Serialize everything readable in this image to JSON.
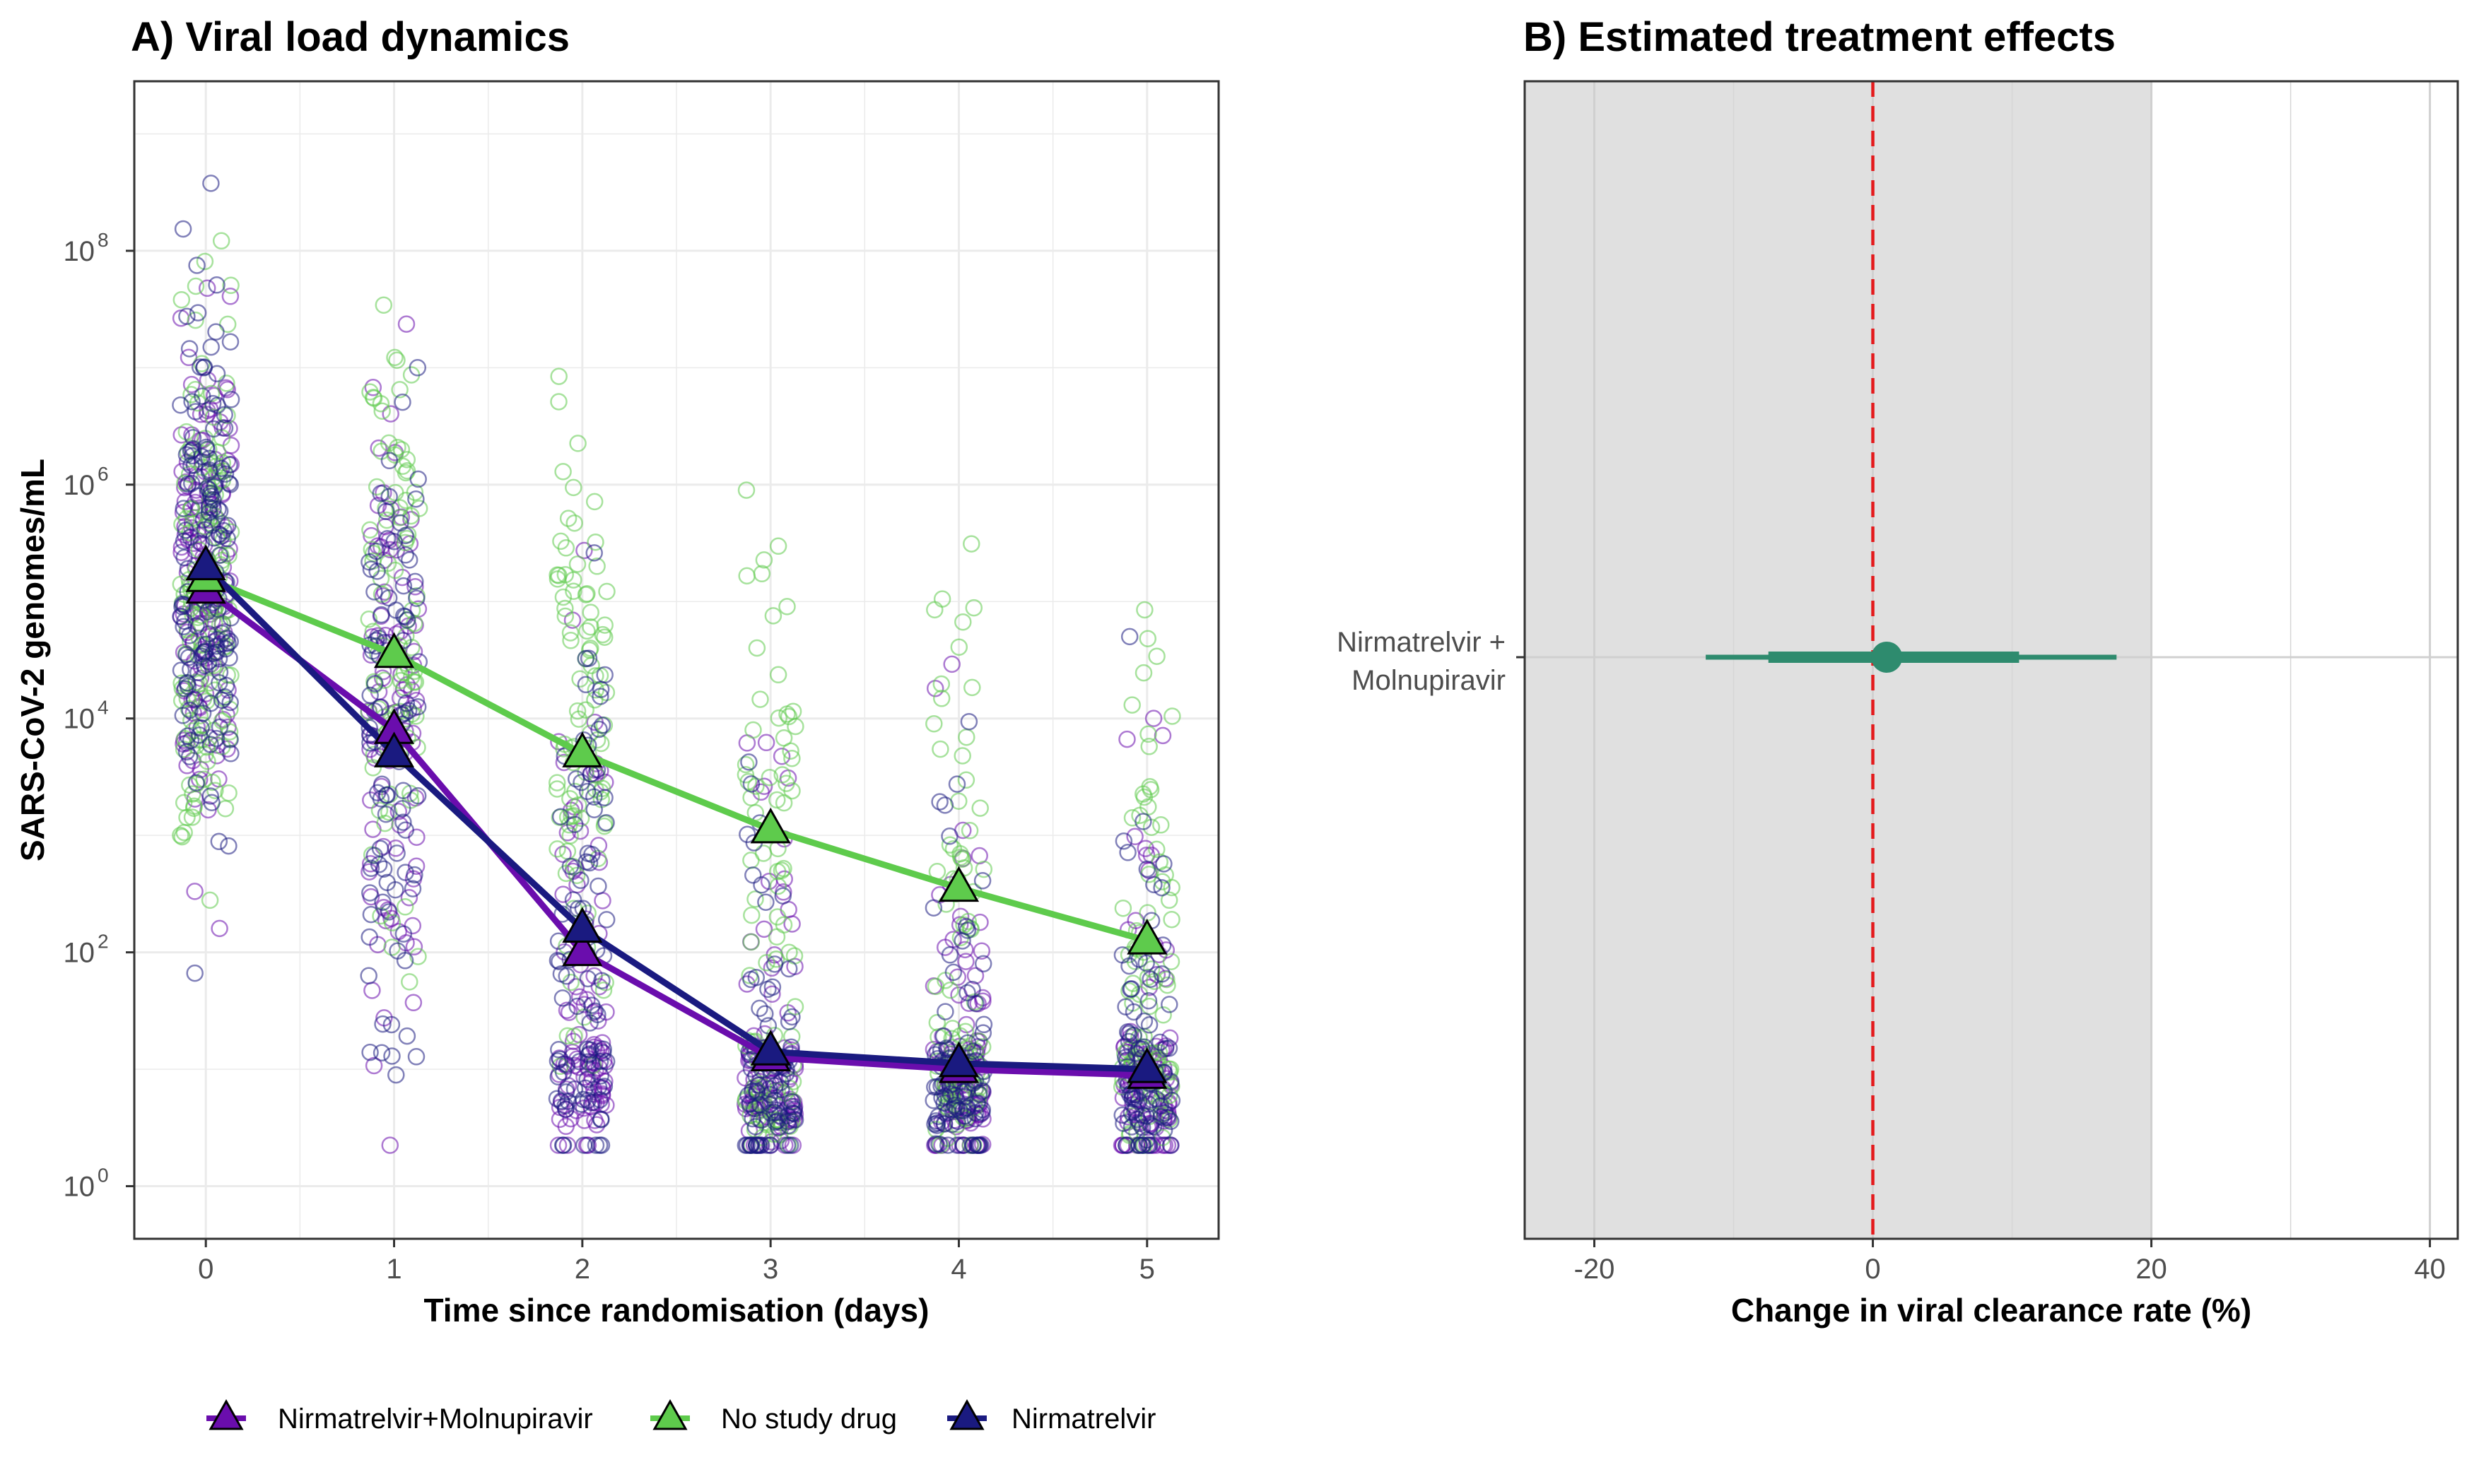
{
  "panel_a": {
    "title": "A) Viral load dynamics",
    "xlabel": "Time since randomisation (days)",
    "ylabel": "SARS-CoV-2 genomes/mL",
    "y_tick_base": "10",
    "y_tick_exponents": [
      "0",
      "2",
      "4",
      "6",
      "8"
    ],
    "x_tick_labels": [
      "0",
      "1",
      "2",
      "3",
      "4",
      "5"
    ]
  },
  "panel_b": {
    "title": "B) Estimated treatment effects",
    "xlabel": "Change in viral clearance rate (%)",
    "x_tick_labels": [
      "-20",
      "0",
      "20",
      "40"
    ],
    "y_category_line1": "Nirmatrelvir +",
    "y_category_line2": "Molnupiravir"
  },
  "legend": {
    "items": [
      {
        "label": "Nirmatrelvir+Molnupiravir",
        "color": "#6a0dad"
      },
      {
        "label": "No study drug",
        "color": "#5ecb4c"
      },
      {
        "label": "Nirmatrelvir",
        "color": "#1a1a80"
      }
    ]
  },
  "chart_data": [
    {
      "type": "line",
      "panel": "A",
      "title": "A) Viral load dynamics",
      "xlabel": "Time since randomisation (days)",
      "ylabel": "SARS-CoV-2 genomes/mL",
      "y_scale": "log10",
      "xlim": [
        -0.38,
        5.38
      ],
      "ylim_log10": [
        -0.45,
        9.45
      ],
      "x": [
        0,
        1,
        2,
        3,
        4,
        5
      ],
      "series": [
        {
          "name": "Nirmatrelvir+Molnupiravir",
          "color": "#6a0dad",
          "log10_values": [
            5.1,
            3.9,
            2.0,
            1.1,
            1.0,
            0.95
          ]
        },
        {
          "name": "No study drug",
          "color": "#5ecb4c",
          "log10_values": [
            5.2,
            4.55,
            3.7,
            3.05,
            2.55,
            2.1
          ]
        },
        {
          "name": "Nirmatrelvir",
          "color": "#1a1a80",
          "log10_values": [
            5.3,
            3.7,
            2.2,
            1.15,
            1.05,
            1.0
          ]
        }
      ],
      "legend_position": "bottom",
      "grid": true,
      "individual_points": "jittered open circles per day for each arm, spanning roughly 10^0.4 to 10^9"
    },
    {
      "type": "scatter",
      "panel": "B",
      "title": "B) Estimated treatment effects",
      "xlabel": "Change in viral clearance rate (%)",
      "xlim": [
        -25,
        42
      ],
      "categories": [
        "Nirmatrelvir + Molnupiravir"
      ],
      "estimates": [
        {
          "category": "Nirmatrelvir + Molnupiravir",
          "median": 1,
          "ci_80": [
            -7.5,
            10.5
          ],
          "ci_95": [
            -12,
            17.5
          ],
          "color": "#2e8b6e"
        }
      ],
      "reference_line": 0,
      "shaded_region": [
        -25,
        20
      ],
      "grid": true
    }
  ]
}
